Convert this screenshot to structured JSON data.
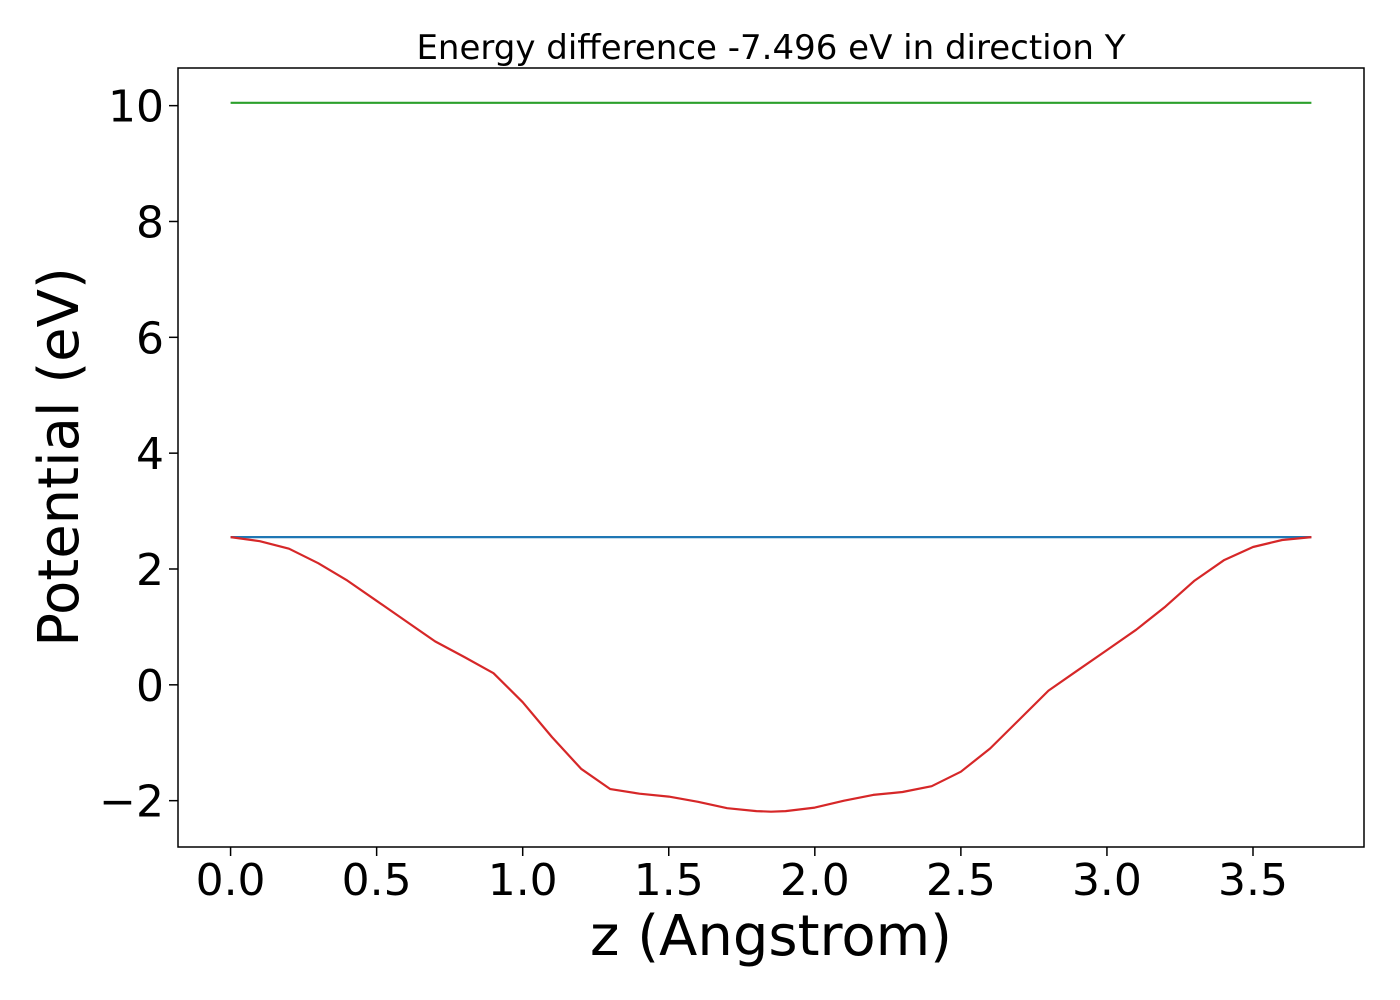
{
  "chart_data": {
    "type": "line",
    "title": "Energy difference -7.496 eV in direction Y",
    "xlabel": "z (Angstrom)",
    "ylabel": "Potential (eV)",
    "xlim": [
      -0.18,
      3.88
    ],
    "ylim": [
      -2.8,
      10.65
    ],
    "xticks": [
      0.0,
      0.5,
      1.0,
      1.5,
      2.0,
      2.5,
      3.0,
      3.5
    ],
    "xtick_labels": [
      "0.0",
      "0.5",
      "1.0",
      "1.5",
      "2.0",
      "2.5",
      "3.0",
      "3.5"
    ],
    "yticks": [
      -2,
      0,
      2,
      4,
      6,
      8,
      10
    ],
    "ytick_labels": [
      "−2",
      "0",
      "2",
      "4",
      "6",
      "8",
      "10"
    ],
    "grid": false,
    "legend": "none",
    "series": [
      {
        "color": "#2ca02c",
        "x": [
          0.0,
          3.7
        ],
        "y": [
          10.05,
          10.05
        ]
      },
      {
        "color": "#1f77b4",
        "x": [
          0.0,
          3.7
        ],
        "y": [
          2.55,
          2.55
        ]
      },
      {
        "color": "#d62728",
        "x": [
          0.0,
          0.1,
          0.2,
          0.3,
          0.4,
          0.5,
          0.6,
          0.7,
          0.8,
          0.9,
          1.0,
          1.1,
          1.2,
          1.3,
          1.4,
          1.5,
          1.6,
          1.7,
          1.8,
          1.85,
          1.9,
          2.0,
          2.1,
          2.2,
          2.3,
          2.4,
          2.5,
          2.6,
          2.7,
          2.8,
          2.9,
          3.0,
          3.1,
          3.2,
          3.3,
          3.4,
          3.5,
          3.6,
          3.7
        ],
        "y": [
          2.55,
          2.48,
          2.35,
          2.1,
          1.8,
          1.45,
          1.1,
          0.75,
          0.48,
          0.2,
          -0.3,
          -0.9,
          -1.45,
          -1.8,
          -1.88,
          -1.93,
          -2.02,
          -2.13,
          -2.18,
          -2.19,
          -2.18,
          -2.12,
          -2.0,
          -1.9,
          -1.85,
          -1.75,
          -1.5,
          -1.1,
          -0.6,
          -0.1,
          0.25,
          0.6,
          0.95,
          1.35,
          1.8,
          2.15,
          2.38,
          2.5,
          2.55
        ]
      }
    ]
  }
}
